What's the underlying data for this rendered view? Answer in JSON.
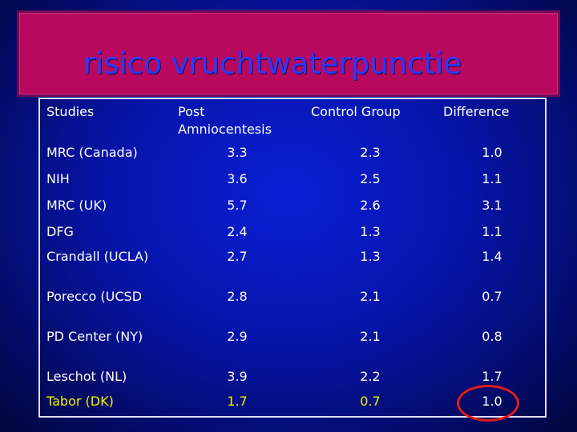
{
  "title": "risico vruchtwaterpunctie",
  "headers": {
    "studies": "Studies",
    "post_line1": "Post",
    "post_line2": "Amniocentesis",
    "control": "Control Group",
    "difference": "Difference"
  },
  "rows": [
    {
      "study": "MRC (Canada)",
      "post": "3.3",
      "control": "2.3",
      "diff": "1.0"
    },
    {
      "study": "NIH",
      "post": "3.6",
      "control": "2.5",
      "diff": "1.1"
    },
    {
      "study": "MRC (UK)",
      "post": "5.7",
      "control": "2.6",
      "diff": "3.1"
    },
    {
      "study": "DFG",
      "post": "2.4",
      "control": "1.3",
      "diff": "1.1"
    },
    {
      "study": "Crandall (UCLA)",
      "post": "2.7",
      "control": "1.3",
      "diff": "1.4"
    },
    {
      "study": "Porecco (UCSD",
      "post": "2.8",
      "control": "2.1",
      "diff": "0.7"
    },
    {
      "study": "PD Center (NY)",
      "post": "2.9",
      "control": "2.1",
      "diff": "0.8"
    },
    {
      "study": "Leschot (NL)",
      "post": "3.9",
      "control": "2.2",
      "diff": "1.7"
    },
    {
      "study": "Tabor (DK)",
      "post": "1.7",
      "control": "0.7",
      "diff": "1.0"
    }
  ],
  "colors": {
    "title_bg": "#b8095f",
    "title_text": "#2b39ff",
    "highlight_text": "#f4f000",
    "circle": "#e31a1a"
  }
}
